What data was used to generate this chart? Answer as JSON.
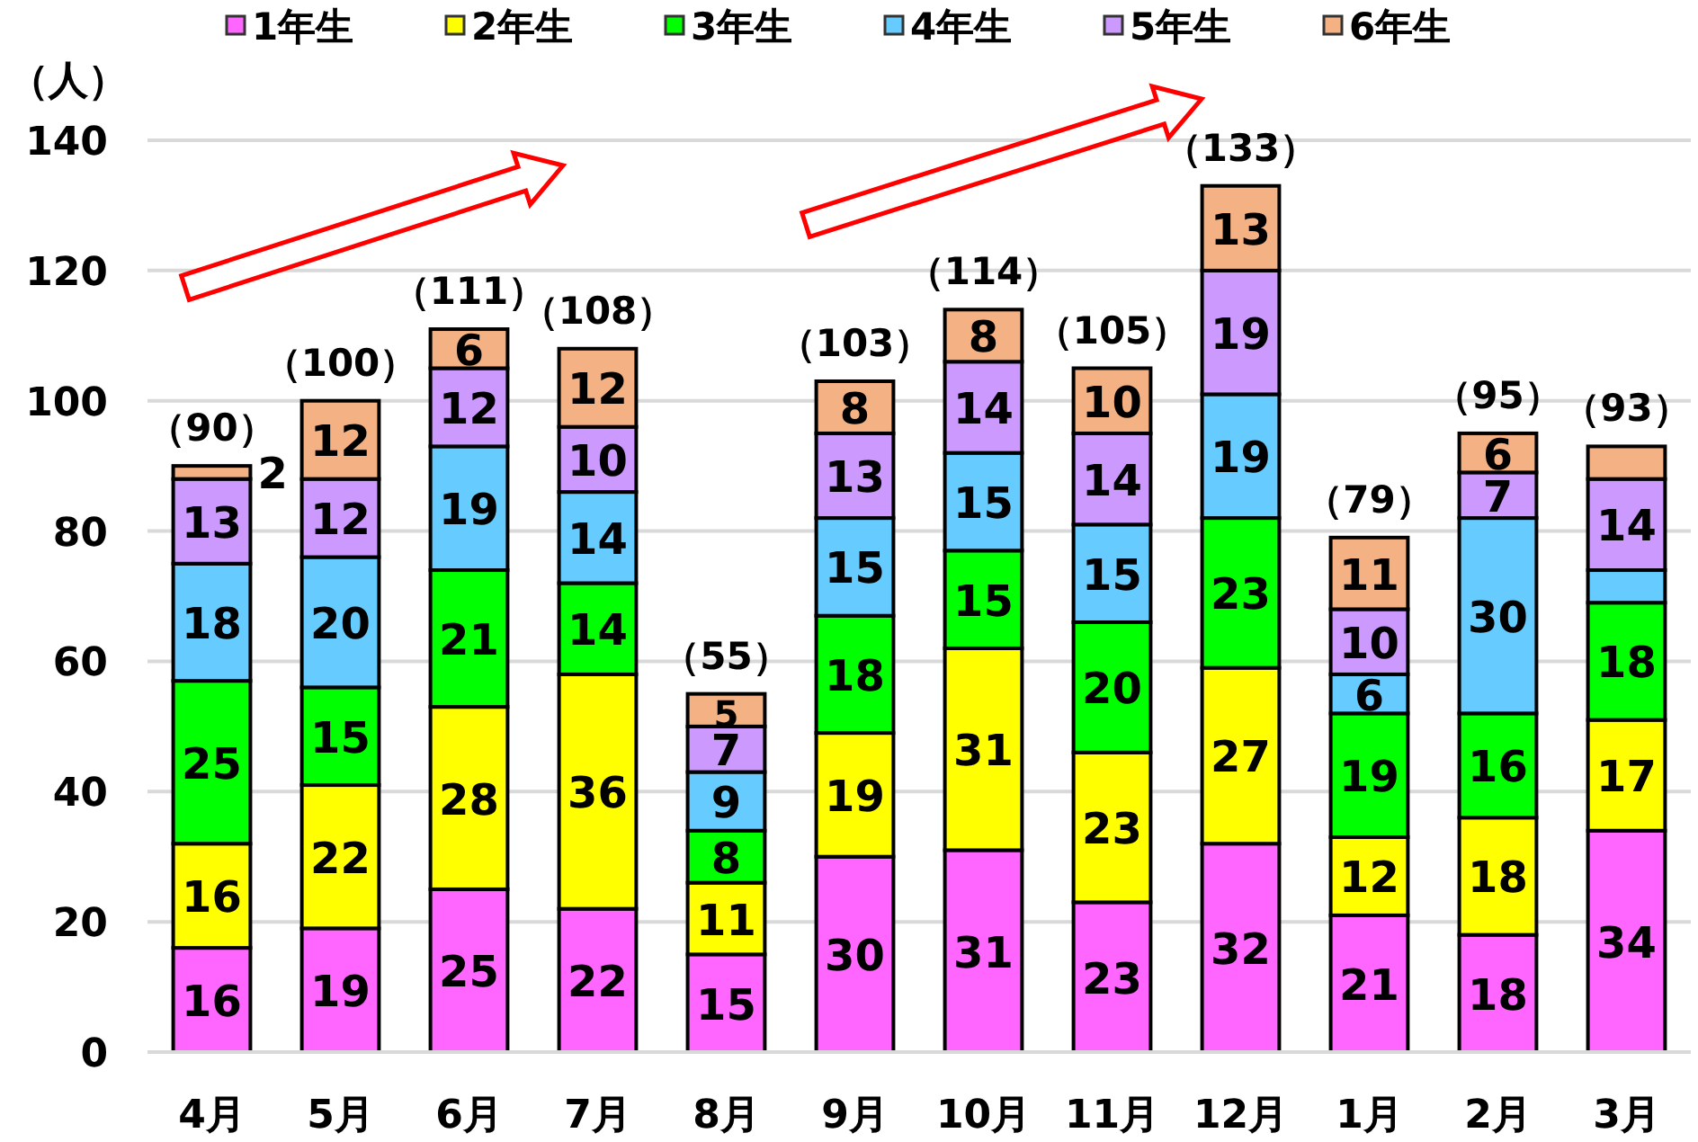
{
  "chart_data": {
    "type": "bar",
    "stacked": true,
    "ylabel": "（人）",
    "categories": [
      "4月",
      "5月",
      "6月",
      "7月",
      "8月",
      "9月",
      "10月",
      "11月",
      "12月",
      "1月",
      "2月",
      "3月"
    ],
    "series": [
      {
        "name": "1年生",
        "color": "#ff66ff",
        "values": [
          16,
          19,
          25,
          22,
          15,
          30,
          31,
          23,
          32,
          21,
          18,
          34
        ]
      },
      {
        "name": "2年生",
        "color": "#ffff00",
        "values": [
          16,
          22,
          28,
          36,
          11,
          19,
          31,
          23,
          27,
          12,
          18,
          17
        ]
      },
      {
        "name": "3年生",
        "color": "#00ff00",
        "values": [
          25,
          15,
          21,
          14,
          8,
          18,
          15,
          20,
          23,
          19,
          16,
          18
        ]
      },
      {
        "name": "4年生",
        "color": "#66ccff",
        "values": [
          18,
          20,
          19,
          14,
          9,
          15,
          15,
          15,
          19,
          6,
          30,
          5
        ],
        "value_labels": [
          "18",
          "20",
          "19",
          "14",
          "9",
          "15",
          "15",
          "15",
          "19",
          "6",
          "30",
          null
        ]
      },
      {
        "name": "5年生",
        "color": "#cc99ff",
        "values": [
          13,
          12,
          12,
          10,
          7,
          13,
          14,
          14,
          19,
          10,
          7,
          14
        ]
      },
      {
        "name": "6年生",
        "color": "#f4b183",
        "values": [
          2,
          12,
          6,
          12,
          5,
          8,
          8,
          10,
          13,
          11,
          6,
          5
        ],
        "value_labels": [
          "2",
          "12",
          "6",
          "12",
          "5",
          "8",
          "8",
          "10",
          "13",
          "11",
          "6",
          null
        ]
      }
    ],
    "totals": [
      "（90）",
      "（100）",
      "（111）",
      "（108）",
      "（55）",
      "（103）",
      "（114）",
      "（105）",
      "（133）",
      "（79）",
      "（95）",
      "（93）"
    ],
    "data_labels": true,
    "ylim": [
      0,
      140
    ],
    "yticks": [
      0,
      20,
      40,
      60,
      80,
      100,
      120,
      140
    ],
    "grid": "y",
    "legend": "top"
  }
}
